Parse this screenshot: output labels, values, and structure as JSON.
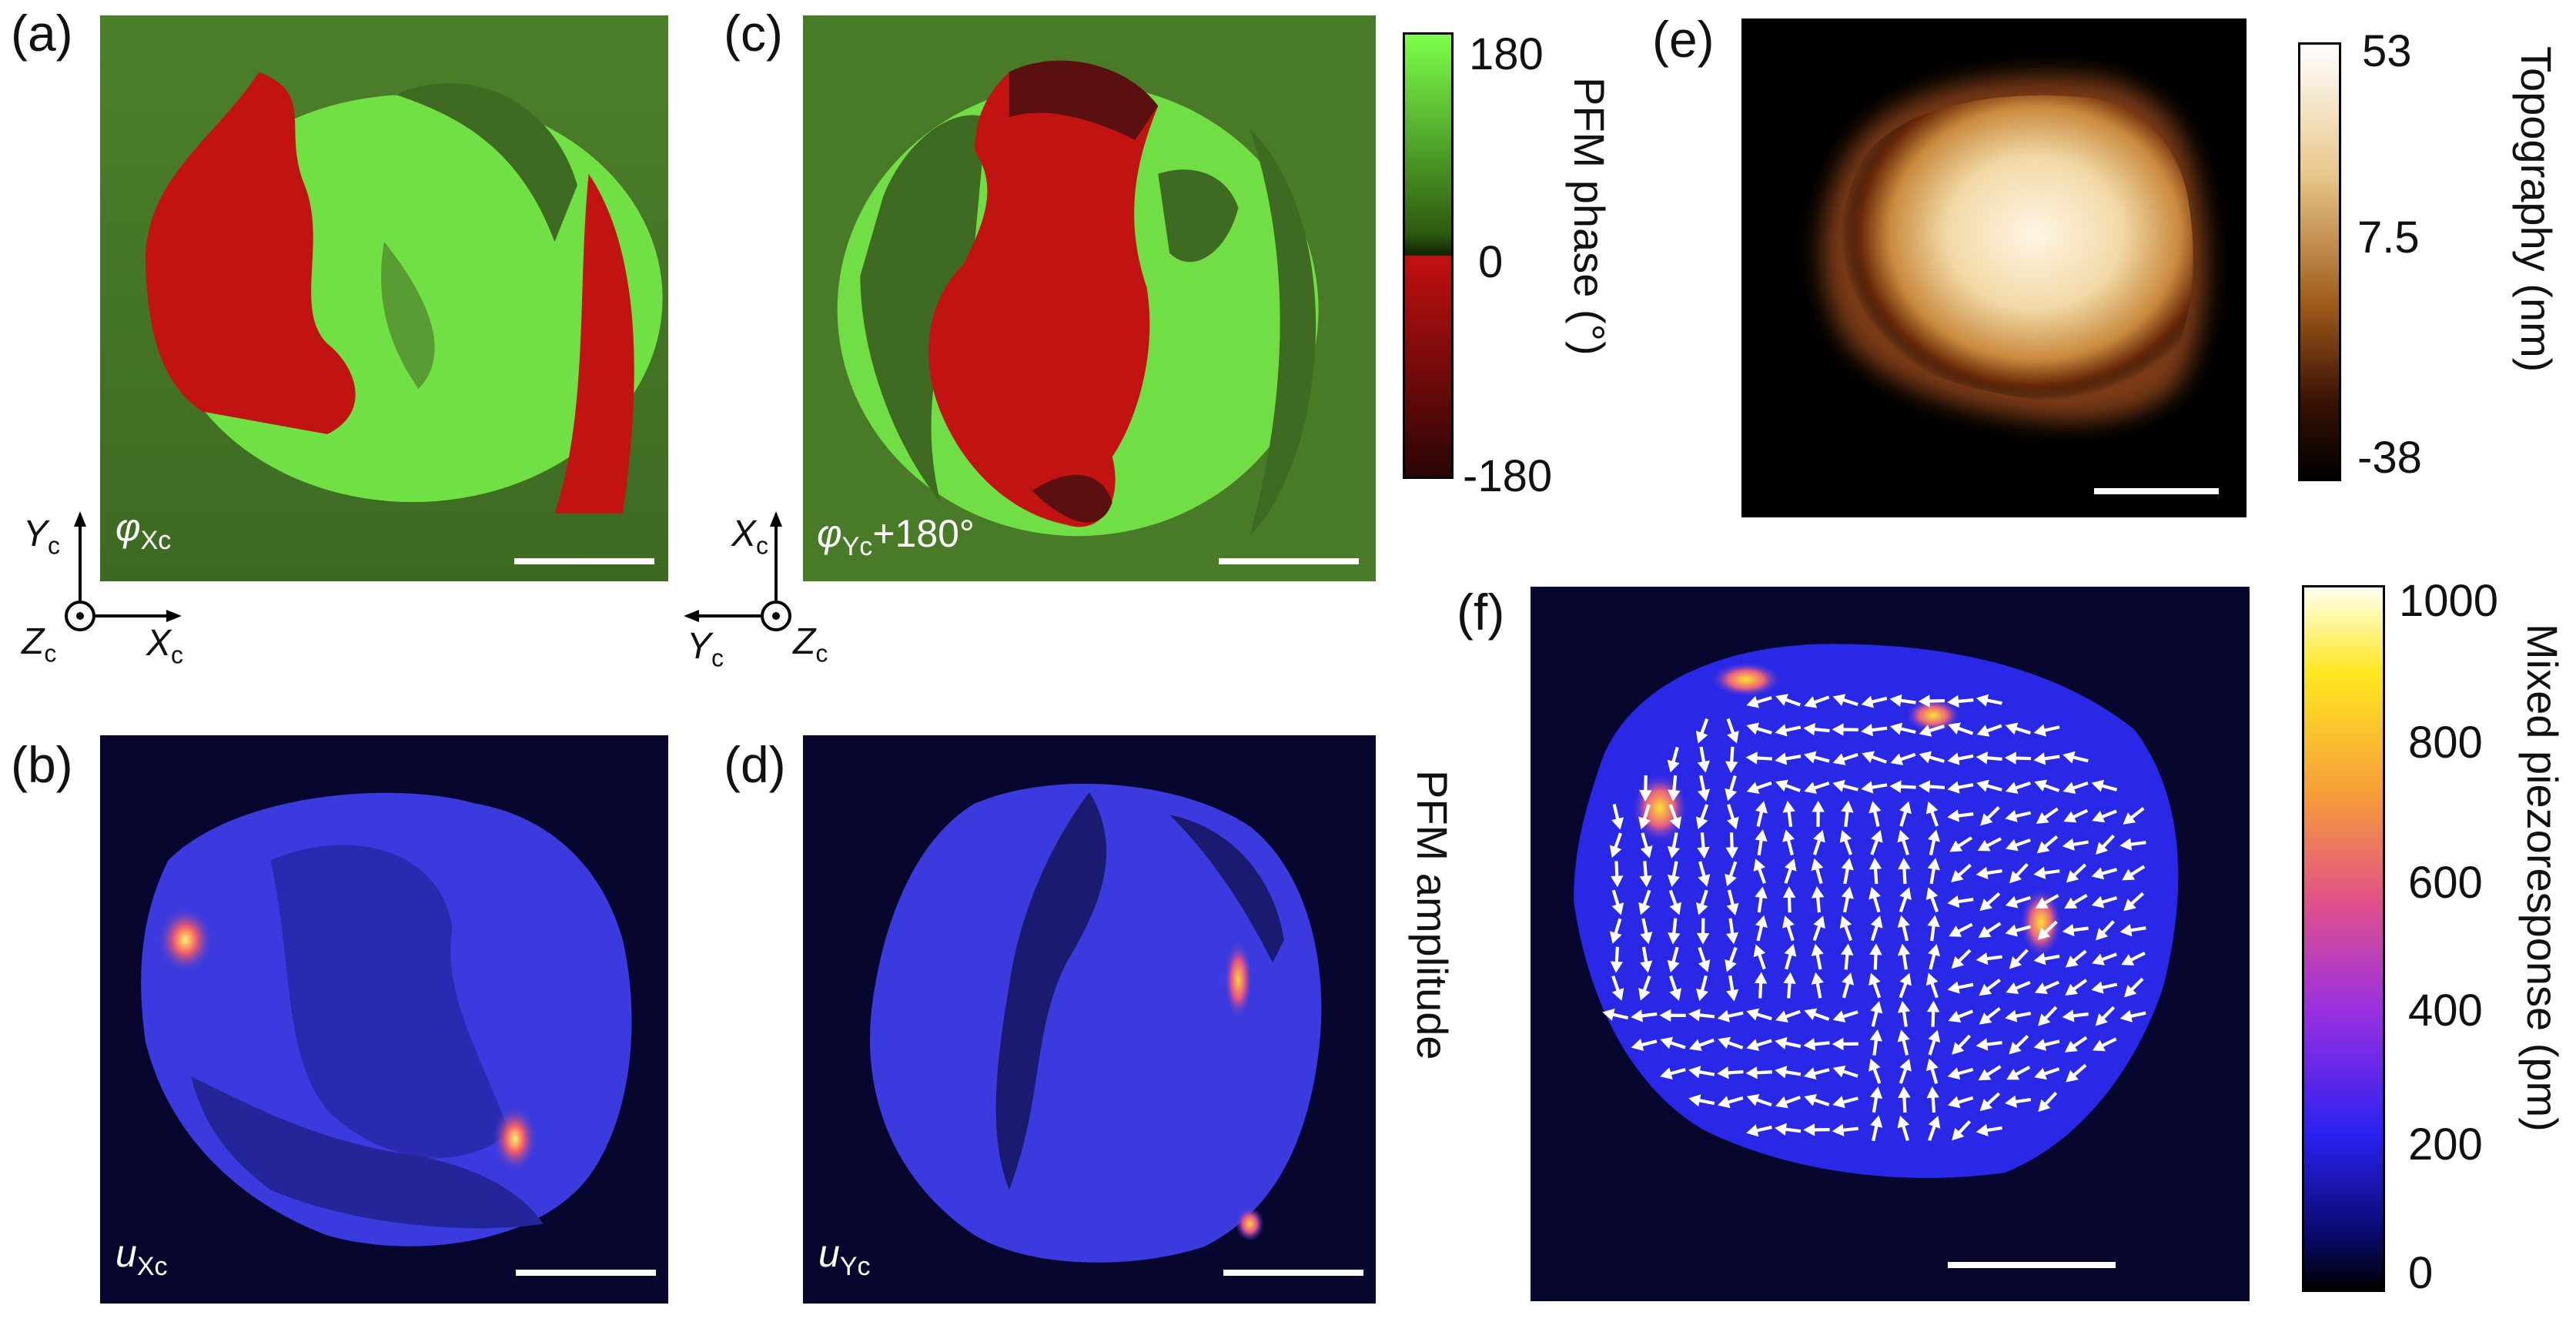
{
  "panels": {
    "a": {
      "label": "(a)",
      "inset_symbol": "φ",
      "inset_subscript": "Xc"
    },
    "b": {
      "label": "(b)",
      "inset_symbol": "u",
      "inset_subscript": "Xc"
    },
    "c": {
      "label": "(c)",
      "inset_symbol": "φ",
      "inset_subscript": "Yc",
      "inset_suffix": "+180°"
    },
    "d": {
      "label": "(d)",
      "inset_symbol": "u",
      "inset_subscript": "Yc"
    },
    "e": {
      "label": "(e)"
    },
    "f": {
      "label": "(f)"
    }
  },
  "axes_left": {
    "y": "Y",
    "x": "X",
    "z": "Z",
    "sub": "c"
  },
  "axes_right": {
    "y": "X",
    "x": "Y",
    "z": "Z",
    "sub": "c"
  },
  "colorbars": {
    "phase": {
      "title": "PFM phase (°)",
      "ticks": [
        "180",
        "0",
        "-180"
      ],
      "colors": [
        "#7CFF4A",
        "#2E5A10",
        "#0F1F05",
        "#C31010",
        "#2A0505"
      ]
    },
    "topography": {
      "title": "Topography (nm)",
      "ticks": [
        "53",
        "7.5",
        "-38"
      ],
      "colors": [
        "#FFFFFF",
        "#E8C78A",
        "#9E5A1A",
        "#3A1205",
        "#000000"
      ]
    },
    "mixed": {
      "title": "Mixed piezoresponse  (pm)",
      "ticks": [
        "1000",
        "800",
        "600",
        "400",
        "200",
        "0"
      ],
      "colors": [
        "#FFFFF0",
        "#FFE820",
        "#F59A3A",
        "#E0508A",
        "#9B30E0",
        "#2A20F0",
        "#0A0A70",
        "#000000"
      ]
    }
  },
  "amplitude_label": "PFM amplitude",
  "colors": {
    "map_bg_dark": "#06062e",
    "phase_green": "#6CE040",
    "phase_dark_green": "#3E6A20",
    "phase_red": "#C41212"
  }
}
